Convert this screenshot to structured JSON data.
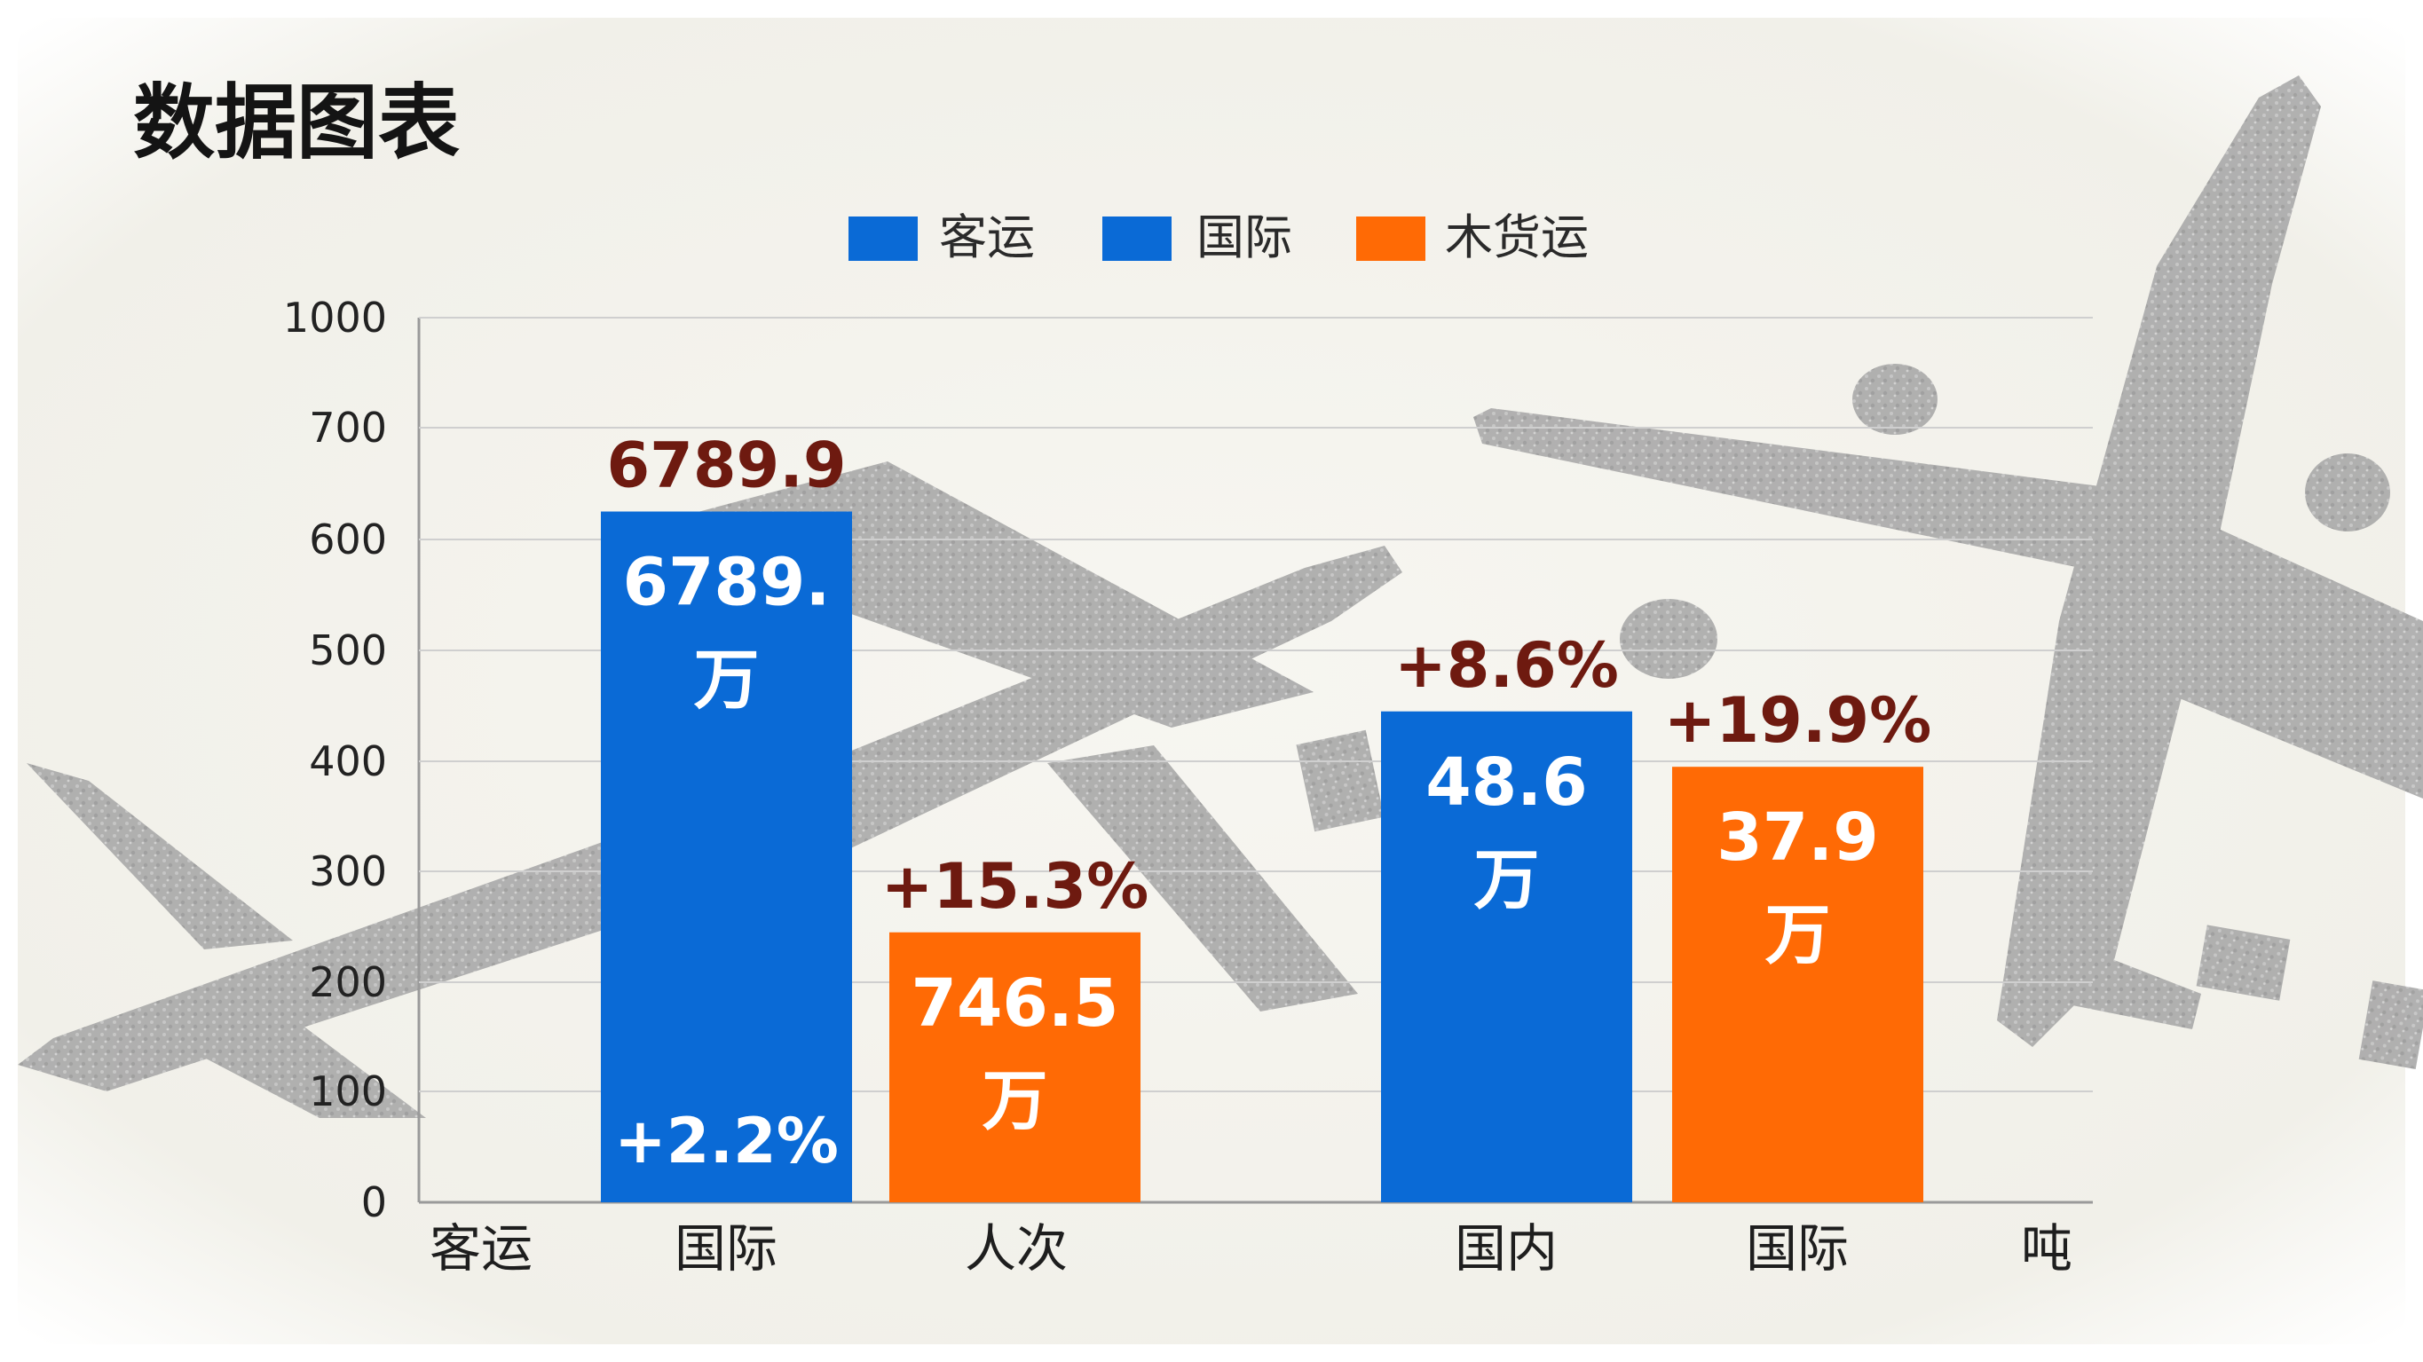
{
  "chart_data": {
    "type": "bar",
    "title": "数据图表",
    "legend": {
      "placement": "top",
      "items": [
        {
          "label": "客运",
          "color": "#0a6ad6"
        },
        {
          "label": "国际",
          "color": "#0a6ad6"
        },
        {
          "label": "木货运",
          "color": "#ff6a05"
        }
      ]
    },
    "y_axis": {
      "ticks": [
        {
          "label": "0",
          "value": 0
        },
        {
          "label": "100",
          "value": 100
        },
        {
          "label": "200",
          "value": 200
        },
        {
          "label": "300",
          "value": 300
        },
        {
          "label": "400",
          "value": 400
        },
        {
          "label": "500",
          "value": 500
        },
        {
          "label": "600",
          "value": 600
        },
        {
          "label": "700",
          "value": 700
        },
        {
          "label": "1000",
          "value": 1000
        }
      ],
      "ylim": [
        0,
        1000
      ]
    },
    "grid": true,
    "x_labels": [
      "客运",
      "国际",
      "人次",
      "国内",
      "国际",
      "吨"
    ],
    "bars": [
      {
        "category": "国际",
        "value": 625,
        "color": "#0a6ad6",
        "top_label": "6789.9",
        "inner_lines": [
          "6789.",
          "万"
        ],
        "bottom_label": "+2.2%"
      },
      {
        "category": "人次",
        "value": 245,
        "color": "#ff6a05",
        "top_label": "+15.3%",
        "inner_lines": [
          "746.5",
          "万"
        ],
        "bottom_label": ""
      },
      {
        "category": "国内",
        "value": 445,
        "color": "#0a6ad6",
        "top_label": "+8.6%",
        "inner_lines": [
          "48.6",
          "万"
        ],
        "bottom_label": ""
      },
      {
        "category": "国际",
        "value": 395,
        "color": "#ff6a05",
        "top_label": "+19.9%",
        "inner_lines": [
          "37.9",
          "万"
        ],
        "bottom_label": ""
      }
    ]
  }
}
